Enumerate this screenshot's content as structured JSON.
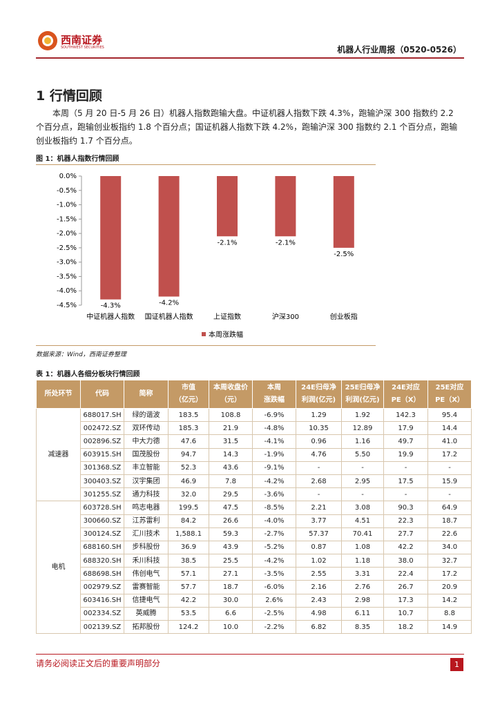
{
  "header": {
    "logo_text": "西南证券",
    "logo_sub": "SOUTHWEST SECURITIES",
    "report_title": "机器人行业周报（0520-0526）"
  },
  "section": {
    "title": "1 行情回顾",
    "paragraph": "本周（5 月 20 日-5 月 26 日）机器人指数跑输大盘。中证机器人指数下跌 4.3%，跑输沪深 300 指数约 2.2 个百分点，跑输创业板指约 1.8 个百分点；国证机器人指数下跌 4.2%，跑输沪深 300 指数约 2.1 个百分点，跑输创业板指约 1.7 个百分点。"
  },
  "figure": {
    "caption": "图 1：机器人指数行情回顾",
    "source": "数据来源：Wind，西南证券整理"
  },
  "chart_data": {
    "type": "bar",
    "categories": [
      "中证机器人指数",
      "国证机器人指数",
      "上证指数",
      "沪深300",
      "创业板指"
    ],
    "series": [
      {
        "name": "本周涨跌幅",
        "color": "#c0504d",
        "values": [
          -4.3,
          -4.2,
          -2.1,
          -2.1,
          -2.5
        ],
        "value_labels": [
          "-4.3%",
          "-4.2%",
          "-2.1%",
          "-2.1%",
          "-2.5%"
        ]
      }
    ],
    "ylim": [
      -4.5,
      0
    ],
    "yticks": [
      {
        "value": 0,
        "label": "0.0%"
      },
      {
        "value": -0.5,
        "label": "-0.5%"
      },
      {
        "value": -1,
        "label": "-1.0%"
      },
      {
        "value": -1.5,
        "label": "-1.5%"
      },
      {
        "value": -2,
        "label": "-2.0%"
      },
      {
        "value": -2.5,
        "label": "-2.5%"
      },
      {
        "value": -3,
        "label": "-3.0%"
      },
      {
        "value": -3.5,
        "label": "-3.5%"
      },
      {
        "value": -4,
        "label": "-4.0%"
      },
      {
        "value": -4.5,
        "label": "-4.5%"
      }
    ],
    "legend": "bottom"
  },
  "table": {
    "caption": "表 1：机器人各细分板块行情回顾",
    "header": [
      [
        "所处环节"
      ],
      [
        "代码"
      ],
      [
        "简称"
      ],
      [
        "市值",
        "（亿元）"
      ],
      [
        "本周收盘价",
        "（元）"
      ],
      [
        "本周",
        "涨跌幅"
      ],
      [
        "24E归母净",
        "利润(亿元)"
      ],
      [
        "25E归母净",
        "利润(亿元)"
      ],
      [
        "24E对应",
        "PE（X）"
      ],
      [
        "25E对应",
        "PE（X）"
      ]
    ],
    "groups": [
      {
        "name": "减速器",
        "rows": [
          [
            "688017.SH",
            "绿的谐波",
            "183.5",
            "108.8",
            "-6.9%",
            "1.29",
            "1.92",
            "142.3",
            "95.4"
          ],
          [
            "002472.SZ",
            "双环传动",
            "185.3",
            "21.9",
            "-4.8%",
            "10.35",
            "12.89",
            "17.9",
            "14.4"
          ],
          [
            "002896.SZ",
            "中大力德",
            "47.6",
            "31.5",
            "-4.1%",
            "0.96",
            "1.16",
            "49.7",
            "41.0"
          ],
          [
            "603915.SH",
            "国茂股份",
            "94.7",
            "14.3",
            "-1.9%",
            "4.76",
            "5.50",
            "19.9",
            "17.2"
          ],
          [
            "301368.SZ",
            "丰立智能",
            "52.3",
            "43.6",
            "-9.1%",
            "-",
            "-",
            "-",
            "-"
          ],
          [
            "300403.SZ",
            "汉宇集团",
            "46.9",
            "7.8",
            "-4.2%",
            "2.68",
            "2.95",
            "17.5",
            "15.9"
          ],
          [
            "301255.SZ",
            "通力科技",
            "32.0",
            "29.5",
            "-3.6%",
            "-",
            "-",
            "-",
            "-"
          ]
        ]
      },
      {
        "name": "电机",
        "rows": [
          [
            "603728.SH",
            "鸣志电器",
            "199.5",
            "47.5",
            "-8.5%",
            "2.21",
            "3.08",
            "90.3",
            "64.9"
          ],
          [
            "300660.SZ",
            "江苏雷利",
            "84.2",
            "26.6",
            "-4.0%",
            "3.77",
            "4.51",
            "22.3",
            "18.7"
          ],
          [
            "300124.SZ",
            "汇川技术",
            "1,588.1",
            "59.3",
            "-2.7%",
            "57.37",
            "70.41",
            "27.7",
            "22.6"
          ],
          [
            "688160.SH",
            "步科股份",
            "36.9",
            "43.9",
            "-5.2%",
            "0.87",
            "1.08",
            "42.2",
            "34.0"
          ],
          [
            "688320.SH",
            "禾川科技",
            "38.5",
            "25.5",
            "-4.2%",
            "1.02",
            "1.18",
            "38.0",
            "32.7"
          ],
          [
            "688698.SH",
            "伟创电气",
            "57.1",
            "27.1",
            "-3.5%",
            "2.55",
            "3.31",
            "22.4",
            "17.2"
          ],
          [
            "002979.SZ",
            "雷赛智能",
            "57.7",
            "18.7",
            "-6.0%",
            "2.16",
            "2.76",
            "26.7",
            "20.9"
          ],
          [
            "603416.SH",
            "信捷电气",
            "42.2",
            "30.0",
            "2.6%",
            "2.43",
            "2.98",
            "17.3",
            "14.2"
          ],
          [
            "002334.SZ",
            "英威腾",
            "53.5",
            "6.6",
            "-2.5%",
            "4.98",
            "6.11",
            "10.7",
            "8.8"
          ],
          [
            "002139.SZ",
            "拓邦股份",
            "124.2",
            "10.0",
            "-2.2%",
            "6.82",
            "8.35",
            "18.2",
            "14.9"
          ]
        ]
      }
    ]
  },
  "footer": {
    "disclaimer": "请务必阅读正文后的重要声明部分",
    "page": "1"
  }
}
